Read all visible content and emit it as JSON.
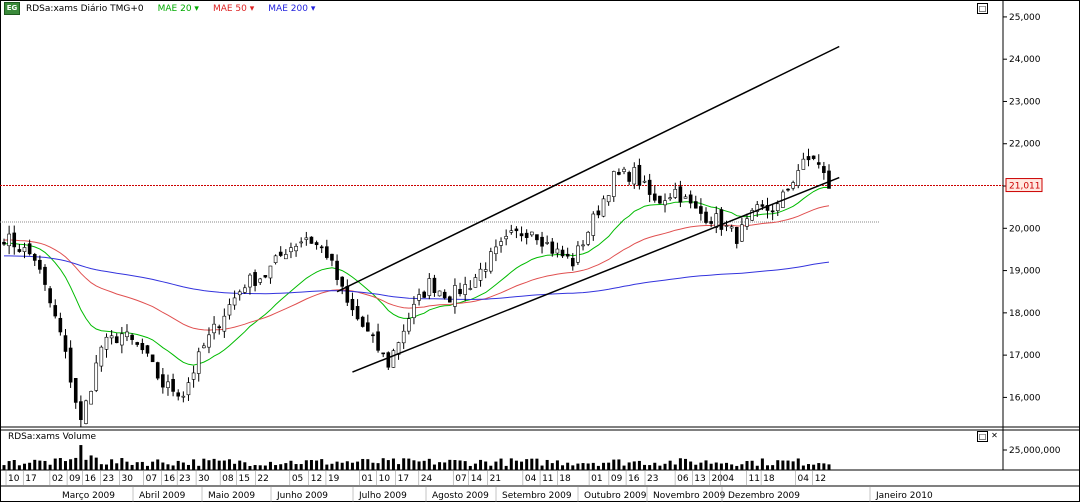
{
  "header": {
    "symbol": "RDSa:xams Diário TMG+0",
    "indicators": [
      {
        "label": "MAE 20",
        "color": "#00aa00"
      },
      {
        "label": "MAE 50",
        "color": "#dd2222"
      },
      {
        "label": "MAE 200",
        "color": "#2222dd"
      }
    ],
    "dropdown_glyph": "▾"
  },
  "volume_panel": {
    "title": "RDSa:xams Volume",
    "scale_label": "25,000,000"
  },
  "controls": {
    "maximize": "□",
    "close": "✕"
  },
  "chart_data": {
    "type": "candlestick",
    "y_ticks": [
      "16,000",
      "17,000",
      "18,000",
      "19,000",
      "20,000",
      "21,000",
      "22,000",
      "23,000",
      "24,000",
      "25,000"
    ],
    "ylim": [
      15.3,
      25.4
    ],
    "last_price_label": "21,011",
    "last_price": 21.011,
    "horizontal_line_level": 20.15,
    "months": [
      "Março 2009",
      "Abril 2009",
      "Maio 2009",
      "Junho 2009",
      "Julho 2009",
      "Agosto 2009",
      "Setembro 2009",
      "Outubro 2009",
      "Novembro 2009",
      "Dezembro 2009",
      "Janeiro 2010"
    ],
    "day_ticks": [
      "10",
      "17",
      "02",
      "09",
      "16",
      "23",
      "30",
      "07",
      "16",
      "23",
      "30",
      "08",
      "15",
      "22",
      "05",
      "12",
      "19",
      "01",
      "10",
      "17",
      "24",
      "07",
      "14",
      "21",
      "04",
      "11",
      "18",
      "01",
      "09",
      "16",
      "23",
      "06",
      "13",
      "20",
      "04",
      "11",
      "18",
      "04",
      "12"
    ],
    "price_keypoints": [
      [
        0,
        19.8
      ],
      [
        6,
        19.3
      ],
      [
        11,
        17.5
      ],
      [
        15,
        15.4
      ],
      [
        19,
        17.2
      ],
      [
        23,
        17.5
      ],
      [
        27,
        17.1
      ],
      [
        31,
        16.3
      ],
      [
        35,
        16.1
      ],
      [
        39,
        17.2
      ],
      [
        43,
        18.0
      ],
      [
        47,
        18.7
      ],
      [
        51,
        18.9
      ],
      [
        55,
        19.5
      ],
      [
        59,
        19.8
      ],
      [
        63,
        19.4
      ],
      [
        67,
        18.2
      ],
      [
        71,
        17.5
      ],
      [
        75,
        16.8
      ],
      [
        79,
        17.9
      ],
      [
        83,
        18.7
      ],
      [
        87,
        18.4
      ],
      [
        91,
        18.7
      ],
      [
        95,
        19.3
      ],
      [
        99,
        19.8
      ],
      [
        103,
        20.0
      ],
      [
        107,
        19.5
      ],
      [
        111,
        19.2
      ],
      [
        115,
        20.2
      ],
      [
        119,
        21.2
      ],
      [
        123,
        21.3
      ],
      [
        127,
        20.6
      ],
      [
        131,
        20.9
      ],
      [
        135,
        20.4
      ],
      [
        139,
        20.2
      ],
      [
        143,
        19.8
      ],
      [
        147,
        20.4
      ],
      [
        151,
        20.5
      ],
      [
        155,
        21.4
      ],
      [
        158,
        21.7
      ],
      [
        161,
        21.0
      ]
    ],
    "series": [
      {
        "name": "MAE 20",
        "color": "#00bb00"
      },
      {
        "name": "MAE 50",
        "color": "#e05050"
      },
      {
        "name": "MAE 200",
        "color": "#3333dd"
      }
    ],
    "trend_channel": {
      "upper": {
        "from": [
          65,
          18.5
        ],
        "to": [
          163,
          24.3
        ]
      },
      "lower": {
        "from": [
          68,
          16.6
        ],
        "to": [
          163,
          21.2
        ]
      }
    },
    "volume_scale": 25000000
  }
}
